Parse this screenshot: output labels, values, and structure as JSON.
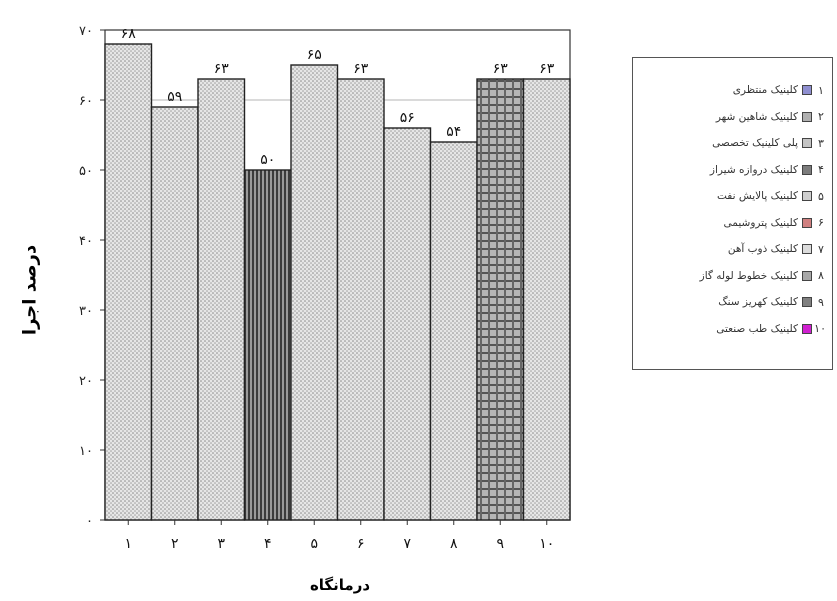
{
  "chart_data": {
    "type": "bar",
    "categories": [
      "۱",
      "۲",
      "۳",
      "۴",
      "۵",
      "۶",
      "۷",
      "۸",
      "۹",
      "۱۰"
    ],
    "values": [
      68,
      59,
      63,
      50,
      65,
      63,
      56,
      54,
      63,
      63
    ],
    "value_labels": [
      "۶۸",
      "۵۹",
      "۶۳",
      "۵۰",
      "۶۵",
      "۶۳",
      "۵۶",
      "۵۴",
      "۶۳",
      "۶۳"
    ],
    "y_ticks": [
      0,
      10,
      20,
      30,
      40,
      50,
      60,
      70
    ],
    "y_tick_labels": [
      "۰",
      "۱۰",
      "۲۰",
      "۳۰",
      "۴۰",
      "۵۰",
      "۶۰",
      "۷۰"
    ],
    "ylim": [
      0,
      70
    ],
    "xlabel": "درمانگاه",
    "ylabel": "درصد اجرا",
    "grid": true,
    "legend_position": "right",
    "legend": [
      {
        "num": "۱",
        "label": "کلینیک منتظری",
        "color": "#8f8fd0"
      },
      {
        "num": "۲",
        "label": "کلینیک شاهین شهر",
        "color": "#b0b0b0"
      },
      {
        "num": "۳",
        "label": "پلی کلینیک تخصصی",
        "color": "#c4c4c4"
      },
      {
        "num": "۴",
        "label": "کلینیک دروازه شیراز",
        "color": "#7c7c7c"
      },
      {
        "num": "۵",
        "label": "کلینیک پالایش نفت",
        "color": "#cfcfcf"
      },
      {
        "num": "۶",
        "label": "کلینیک پتروشیمی",
        "color": "#d08080"
      },
      {
        "num": "۷",
        "label": "کلینیک ذوب آهن",
        "color": "#dcdcdc"
      },
      {
        "num": "۸",
        "label": "کلینیک خطوط لوله گاز",
        "color": "#a8a8a8"
      },
      {
        "num": "۹",
        "label": "کلینیک کهریز سنگ",
        "color": "#808080"
      },
      {
        "num": "۱۰",
        "label": "کلینیک طب صنعتی",
        "color": "#d020d0"
      }
    ],
    "bar_fills": [
      "#d2d2d2",
      "#c6c6c6",
      "#cdcdcd",
      "#7a7a7a",
      "#d5d5d5",
      "#c2c2c2",
      "#dadada",
      "#c8c8c8",
      "#9a9a9a",
      "#d0d0d0"
    ]
  }
}
